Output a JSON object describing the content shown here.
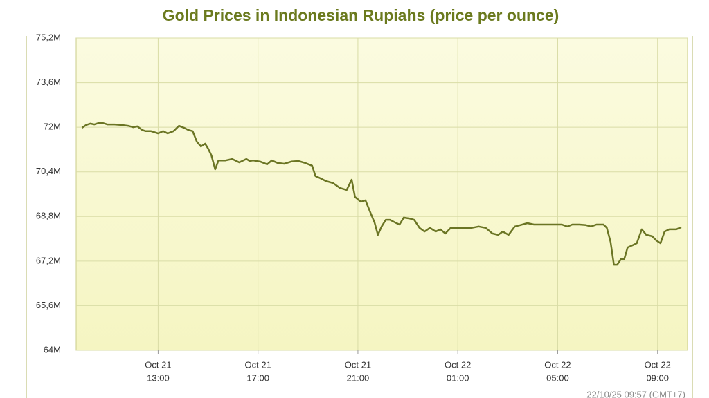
{
  "chart_data": {
    "type": "line",
    "title": "Gold Prices in Indonesian Rupiahs (price per ounce)",
    "footnote": "22/10/25 09:57 (GMT+7)",
    "x": [
      "Oct 21 09:57",
      "Oct 21 10:07",
      "Oct 21 10:17",
      "Oct 21 10:27",
      "Oct 21 10:37",
      "Oct 21 10:47",
      "Oct 21 10:58",
      "Oct 21 11:15",
      "Oct 21 11:32",
      "Oct 21 11:48",
      "Oct 21 12:00",
      "Oct 21 12:10",
      "Oct 21 12:22",
      "Oct 21 12:30",
      "Oct 21 12:43",
      "Oct 21 13:00",
      "Oct 21 13:12",
      "Oct 21 13:23",
      "Oct 21 13:37",
      "Oct 21 13:50",
      "Oct 21 14:02",
      "Oct 21 14:13",
      "Oct 21 14:23",
      "Oct 21 14:33",
      "Oct 21 14:43",
      "Oct 21 14:53",
      "Oct 21 15:00",
      "Oct 21 15:08",
      "Oct 21 15:17",
      "Oct 21 15:25",
      "Oct 21 15:42",
      "Oct 21 15:58",
      "Oct 21 16:15",
      "Oct 21 16:32",
      "Oct 21 16:40",
      "Oct 21 16:48",
      "Oct 21 17:05",
      "Oct 21 17:22",
      "Oct 21 17:33",
      "Oct 21 17:47",
      "Oct 21 18:03",
      "Oct 21 18:20",
      "Oct 21 18:37",
      "Oct 21 18:53",
      "Oct 21 19:10",
      "Oct 21 19:18",
      "Oct 21 19:30",
      "Oct 21 19:43",
      "Oct 21 20:00",
      "Oct 21 20:17",
      "Oct 21 20:33",
      "Oct 21 20:45",
      "Oct 21 20:53",
      "Oct 21 21:07",
      "Oct 21 21:18",
      "Oct 21 21:28",
      "Oct 21 21:40",
      "Oct 21 21:48",
      "Oct 21 21:57",
      "Oct 21 22:07",
      "Oct 21 22:17",
      "Oct 21 22:30",
      "Oct 21 22:40",
      "Oct 21 22:50",
      "Oct 21 23:03",
      "Oct 21 23:15",
      "Oct 21 23:28",
      "Oct 21 23:40",
      "Oct 21 23:53",
      "Oct 22 00:07",
      "Oct 22 00:18",
      "Oct 22 00:30",
      "Oct 22 00:43",
      "Oct 22 01:00",
      "Oct 22 01:17",
      "Oct 22 01:33",
      "Oct 22 01:50",
      "Oct 22 02:07",
      "Oct 22 02:23",
      "Oct 22 02:37",
      "Oct 22 02:48",
      "Oct 22 03:02",
      "Oct 22 03:17",
      "Oct 22 03:30",
      "Oct 22 03:47",
      "Oct 22 04:03",
      "Oct 22 04:20",
      "Oct 22 04:37",
      "Oct 22 04:53",
      "Oct 22 05:10",
      "Oct 22 05:23",
      "Oct 22 05:35",
      "Oct 22 05:52",
      "Oct 22 06:08",
      "Oct 22 06:20",
      "Oct 22 06:33",
      "Oct 22 06:50",
      "Oct 22 06:58",
      "Oct 22 07:07",
      "Oct 22 07:15",
      "Oct 22 07:23",
      "Oct 22 07:32",
      "Oct 22 07:40",
      "Oct 22 07:48",
      "Oct 22 08:00",
      "Oct 22 08:10",
      "Oct 22 08:22",
      "Oct 22 08:33",
      "Oct 22 08:47",
      "Oct 22 08:57",
      "Oct 22 09:07",
      "Oct 22 09:17",
      "Oct 22 09:28",
      "Oct 22 09:45",
      "Oct 22 09:53",
      "Oct 22 09:57"
    ],
    "values": [
      71980000,
      72080000,
      72130000,
      72100000,
      72150000,
      72150000,
      72100000,
      72100000,
      72080000,
      72050000,
      72000000,
      72030000,
      71900000,
      71860000,
      71860000,
      71780000,
      71860000,
      71780000,
      71860000,
      72050000,
      71980000,
      71900000,
      71860000,
      71480000,
      71310000,
      71410000,
      71240000,
      70990000,
      70490000,
      70810000,
      70810000,
      70860000,
      70740000,
      70860000,
      70790000,
      70810000,
      70770000,
      70670000,
      70810000,
      70720000,
      70690000,
      70770000,
      70790000,
      70720000,
      70620000,
      70250000,
      70170000,
      70070000,
      70000000,
      69820000,
      69750000,
      70120000,
      69500000,
      69330000,
      69380000,
      69010000,
      68580000,
      68140000,
      68440000,
      68680000,
      68680000,
      68580000,
      68510000,
      68760000,
      68730000,
      68680000,
      68390000,
      68260000,
      68390000,
      68260000,
      68340000,
      68190000,
      68390000,
      68390000,
      68390000,
      68390000,
      68440000,
      68390000,
      68190000,
      68140000,
      68260000,
      68140000,
      68440000,
      68490000,
      68560000,
      68510000,
      68510000,
      68510000,
      68510000,
      68510000,
      68440000,
      68510000,
      68510000,
      68490000,
      68440000,
      68510000,
      68510000,
      68390000,
      67890000,
      67070000,
      67070000,
      67270000,
      67270000,
      67690000,
      67770000,
      67840000,
      68340000,
      68140000,
      68090000,
      67940000,
      67840000,
      68260000,
      68340000,
      68340000,
      68390000,
      68410000
    ],
    "color": "#6b7524",
    "xlim": [
      "Oct 21 09:43",
      "Oct 22 10:12"
    ],
    "xticks": [
      {
        "value": "Oct 21 13:00",
        "label": [
          "Oct 21",
          "13:00"
        ]
      },
      {
        "value": "Oct 21 17:00",
        "label": [
          "Oct 21",
          "17:00"
        ]
      },
      {
        "value": "Oct 21 21:00",
        "label": [
          "Oct 21",
          "21:00"
        ]
      },
      {
        "value": "Oct 22 01:00",
        "label": [
          "Oct 22",
          "01:00"
        ]
      },
      {
        "value": "Oct 22 05:00",
        "label": [
          "Oct 22",
          "05:00"
        ]
      },
      {
        "value": "Oct 22 09:00",
        "label": [
          "Oct 22",
          "09:00"
        ]
      }
    ],
    "ylim": [
      64000000,
      75200000
    ],
    "yticks": [
      {
        "value": 64000000,
        "label": "64M"
      },
      {
        "value": 65600000,
        "label": "65,6M"
      },
      {
        "value": 67200000,
        "label": "67,2M"
      },
      {
        "value": 68800000,
        "label": "68,8M"
      },
      {
        "value": 70400000,
        "label": "70,4M"
      },
      {
        "value": 72000000,
        "label": "72M"
      },
      {
        "value": 73600000,
        "label": "73,6M"
      },
      {
        "value": 75200000,
        "label": "75,2M"
      }
    ],
    "grid": true
  }
}
